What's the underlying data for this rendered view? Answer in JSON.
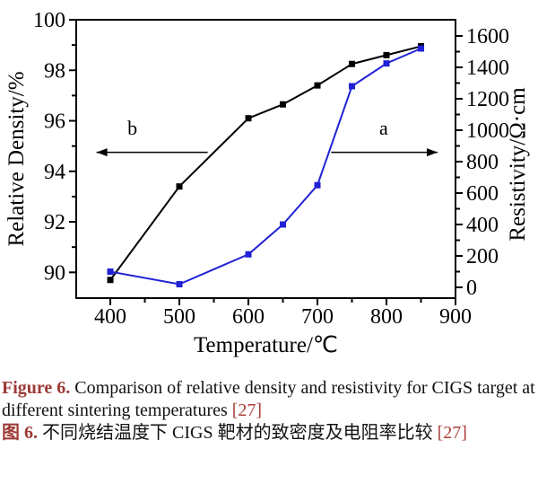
{
  "colors": {
    "density_curve_black": "#000000",
    "resistivity_curve_blue": "#2121d6",
    "caption_label_maroon": "#9c3a36",
    "citation_red": "#a8403a"
  },
  "chart_data": {
    "type": "line",
    "title": "",
    "xlabel": "Temperature/℃",
    "ylabel_left": "Relative Density/%",
    "ylabel_right": "Resistivity/Ω·cm",
    "x": [
      400,
      500,
      600,
      650,
      700,
      750,
      800,
      850
    ],
    "series": [
      {
        "name": "relative-density",
        "curve_label": "b",
        "axis": "left",
        "color": "#000000",
        "marker": "square",
        "values": [
          89.7,
          93.4,
          96.1,
          96.65,
          97.4,
          98.25,
          98.6,
          98.95
        ]
      },
      {
        "name": "resistivity",
        "curve_label": "a",
        "axis": "right",
        "color": "#2121d6",
        "marker": "square",
        "values": [
          100,
          20,
          210,
          400,
          650,
          1280,
          1425,
          1520
        ]
      }
    ],
    "xlim": [
      350.6,
      900
    ],
    "ylim_left": [
      88.98,
      100
    ],
    "ylim_right": [
      -68.6,
      1702.9
    ],
    "xticks_major": [
      400,
      500,
      600,
      700,
      800,
      900
    ],
    "xticks_minor": [
      450,
      550,
      650,
      750,
      850
    ],
    "yticks_left_major": [
      90,
      92,
      94,
      96,
      98,
      100
    ],
    "yticks_left_minor": [
      91,
      93,
      95,
      97,
      99
    ],
    "yticks_right_major": [
      0,
      200,
      400,
      600,
      800,
      1000,
      1200,
      1400,
      1600
    ],
    "yticks_right_minor": [
      100,
      300,
      500,
      700,
      900,
      1100,
      1300,
      1500
    ],
    "grid": false,
    "legend": "none",
    "annotations": [
      {
        "label": "b",
        "series": "relative-density",
        "direction": "left",
        "arrow_y_left_axis": 94.75,
        "arrow_x_tail": 541,
        "arrow_x_tip": 380,
        "label_x": 432,
        "label_y_left_axis": 95.45
      },
      {
        "label": "a",
        "series": "resistivity",
        "direction": "right",
        "arrow_y_left_axis": 94.75,
        "arrow_x_tail": 720,
        "arrow_x_tip": 874,
        "label_x": 796,
        "label_y_left_axis": 95.45
      }
    ]
  },
  "caption": {
    "en": {
      "label": "Figure 6.",
      "text": "Comparison of relative density and resistivity for CIGS target at different sintering temperatures",
      "ref": "[27]"
    },
    "zh": {
      "label": "图 6.",
      "text": "不同烧结温度下 CIGS 靶材的致密度及电阻率比较",
      "ref": "[27]"
    }
  }
}
